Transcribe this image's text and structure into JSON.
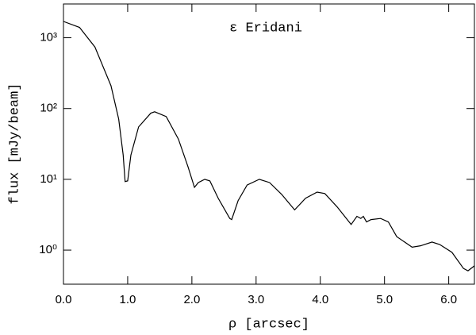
{
  "chart_data": {
    "type": "line",
    "title": "ε Eridani",
    "x_label": "ρ [arcsec]",
    "y_label": "flux [mJy/beam]",
    "log_y": true,
    "color": "#000000",
    "xlim": [
      0,
      6.4
    ],
    "ylim": [
      0.33,
      3000
    ],
    "xticks": [
      {
        "value": 0,
        "label": "0.0"
      },
      {
        "value": 1,
        "label": "1.0"
      },
      {
        "value": 2,
        "label": "2.0"
      },
      {
        "value": 3,
        "label": "3.0"
      },
      {
        "value": 4,
        "label": "4.0"
      },
      {
        "value": 5,
        "label": "5.0"
      },
      {
        "value": 6,
        "label": "6.0"
      }
    ],
    "yticks": [
      {
        "value": 1,
        "label": "10⁰"
      },
      {
        "value": 10,
        "label": "10¹"
      },
      {
        "value": 100,
        "label": "10²"
      },
      {
        "value": 1000,
        "label": "10³"
      }
    ],
    "x": [
      0.0,
      0.25,
      0.49,
      0.74,
      0.86,
      0.93,
      0.96,
      1.0,
      1.05,
      1.17,
      1.36,
      1.42,
      1.6,
      1.79,
      1.94,
      2.04,
      2.1,
      2.2,
      2.28,
      2.41,
      2.59,
      2.62,
      2.72,
      2.86,
      3.05,
      3.21,
      3.4,
      3.6,
      3.77,
      3.95,
      4.07,
      4.26,
      4.48,
      4.57,
      4.63,
      4.67,
      4.72,
      4.79,
      4.94,
      5.06,
      5.19,
      5.43,
      5.56,
      5.74,
      5.86,
      6.05,
      6.23,
      6.3,
      6.4
    ],
    "values": [
      1700,
      1400,
      740,
      210,
      71,
      22,
      9.3,
      9.5,
      22,
      55,
      86,
      90,
      77,
      37,
      15,
      7.7,
      9,
      10,
      9.5,
      5.4,
      2.8,
      2.7,
      5,
      8.3,
      10,
      9,
      6.1,
      3.7,
      5.4,
      6.6,
      6.3,
      4.1,
      2.3,
      3.0,
      2.8,
      3.0,
      2.5,
      2.7,
      2.8,
      2.5,
      1.55,
      1.1,
      1.15,
      1.3,
      1.2,
      0.93,
      0.55,
      0.51,
      0.6
    ]
  }
}
